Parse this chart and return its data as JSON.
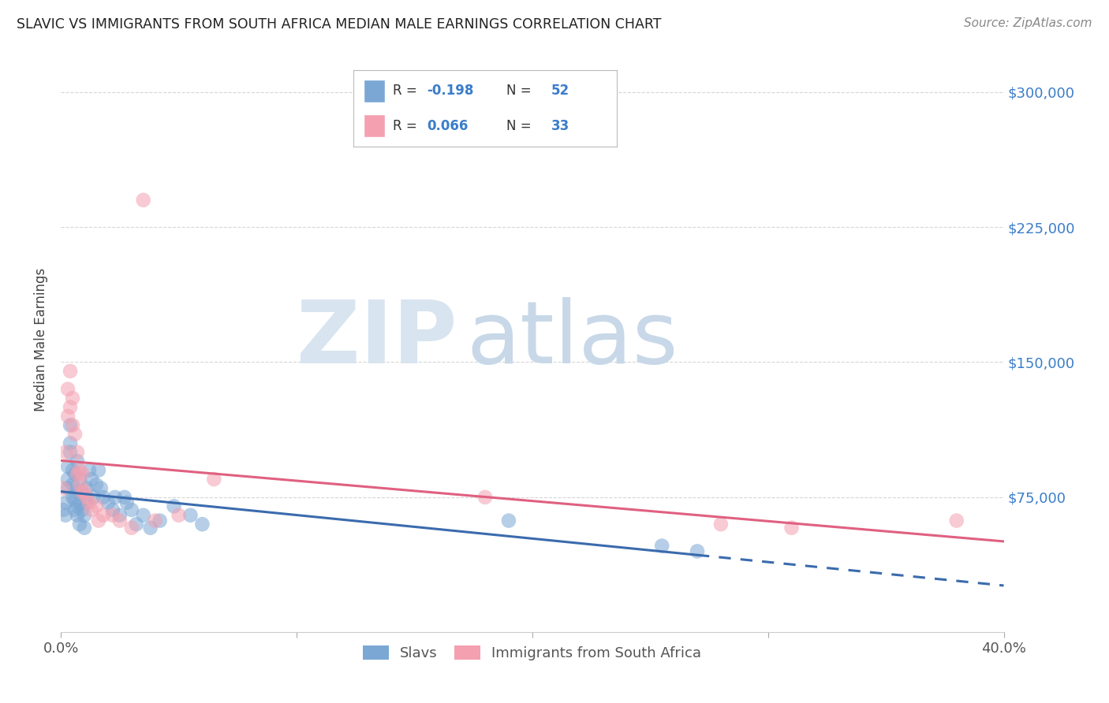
{
  "title": "SLAVIC VS IMMIGRANTS FROM SOUTH AFRICA MEDIAN MALE EARNINGS CORRELATION CHART",
  "source": "Source: ZipAtlas.com",
  "ylabel": "Median Male Earnings",
  "xlim": [
    0.0,
    0.4
  ],
  "ylim": [
    0,
    325000
  ],
  "yticks": [
    75000,
    150000,
    225000,
    300000
  ],
  "ytick_labels": [
    "$75,000",
    "$150,000",
    "$225,000",
    "$300,000"
  ],
  "color_slavs": "#7BA7D4",
  "color_south_africa": "#F4A0B0",
  "line_color_slavs": "#3A6BAD",
  "line_color_sa": "#E06080",
  "watermark_zip": "ZIP",
  "watermark_atlas": "atlas",
  "slavs_x": [
    0.001,
    0.002,
    0.002,
    0.003,
    0.003,
    0.003,
    0.004,
    0.004,
    0.004,
    0.005,
    0.005,
    0.005,
    0.006,
    0.006,
    0.006,
    0.006,
    0.007,
    0.007,
    0.007,
    0.008,
    0.008,
    0.008,
    0.009,
    0.009,
    0.01,
    0.01,
    0.011,
    0.011,
    0.012,
    0.013,
    0.014,
    0.015,
    0.016,
    0.017,
    0.018,
    0.02,
    0.022,
    0.023,
    0.025,
    0.027,
    0.028,
    0.03,
    0.032,
    0.035,
    0.038,
    0.042,
    0.048,
    0.055,
    0.06,
    0.19,
    0.255,
    0.27
  ],
  "slavs_y": [
    68000,
    72000,
    65000,
    80000,
    85000,
    92000,
    105000,
    115000,
    100000,
    75000,
    82000,
    90000,
    68000,
    73000,
    78000,
    88000,
    95000,
    70000,
    65000,
    85000,
    72000,
    60000,
    68000,
    78000,
    58000,
    65000,
    72000,
    80000,
    90000,
    85000,
    75000,
    82000,
    90000,
    80000,
    75000,
    72000,
    68000,
    75000,
    65000,
    75000,
    72000,
    68000,
    60000,
    65000,
    58000,
    62000,
    70000,
    65000,
    60000,
    62000,
    48000,
    45000
  ],
  "sa_x": [
    0.001,
    0.002,
    0.003,
    0.003,
    0.004,
    0.004,
    0.005,
    0.005,
    0.006,
    0.007,
    0.007,
    0.008,
    0.008,
    0.009,
    0.009,
    0.01,
    0.011,
    0.012,
    0.013,
    0.015,
    0.016,
    0.018,
    0.022,
    0.025,
    0.03,
    0.035,
    0.04,
    0.05,
    0.065,
    0.18,
    0.28,
    0.31,
    0.38
  ],
  "sa_y": [
    80000,
    100000,
    120000,
    135000,
    125000,
    145000,
    115000,
    130000,
    110000,
    88000,
    100000,
    90000,
    82000,
    78000,
    88000,
    78000,
    75000,
    72000,
    68000,
    70000,
    62000,
    65000,
    65000,
    62000,
    58000,
    240000,
    62000,
    65000,
    85000,
    75000,
    60000,
    58000,
    62000
  ]
}
